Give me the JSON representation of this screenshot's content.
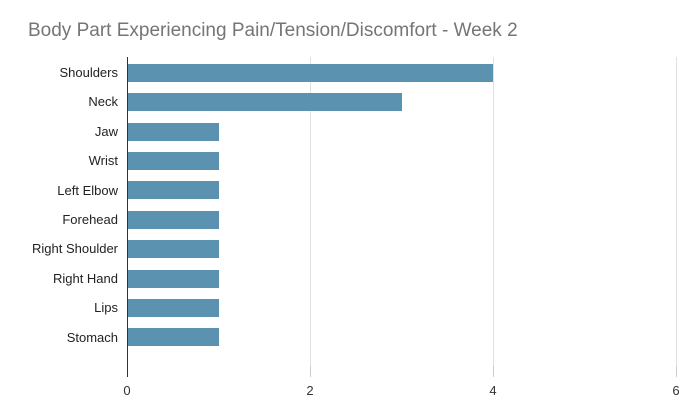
{
  "chart_data": {
    "type": "bar",
    "orientation": "horizontal",
    "title": "Body Part Experiencing Pain/Tension/Discomfort - Week 2",
    "categories": [
      "Shoulders",
      "Neck",
      "Jaw",
      "Wrist",
      "Left Elbow",
      "Forehead",
      "Right Shoulder",
      "Right Hand",
      "Lips",
      "Stomach"
    ],
    "values": [
      4,
      3,
      1,
      1,
      1,
      1,
      1,
      1,
      1,
      1
    ],
    "xlabel": "",
    "ylabel": "",
    "xlim": [
      0,
      6
    ],
    "x_ticks": [
      0,
      2,
      4,
      6
    ],
    "grid": true,
    "legend": "none",
    "bar_color": "#5b92b0",
    "colors": {
      "background": "#ffffff",
      "title": "#757575",
      "category_label": "#222222",
      "axis_label": "#333333",
      "axis_line": "#333333",
      "gridline": "#e0e0e0",
      "tick": "#cccccc"
    }
  }
}
